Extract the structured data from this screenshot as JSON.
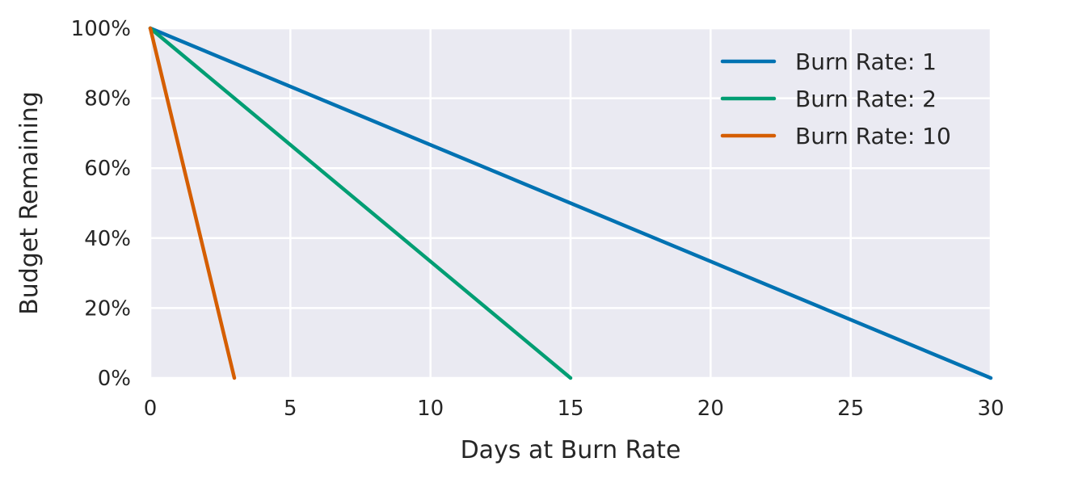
{
  "chart_data": {
    "type": "line",
    "title": "",
    "xlabel": "Days at Burn Rate",
    "ylabel": "Budget Remaining",
    "xlim": [
      0,
      30
    ],
    "ylim": [
      0,
      100
    ],
    "x_ticks": [
      0,
      5,
      10,
      15,
      20,
      25,
      30
    ],
    "x_tick_labels": [
      "0",
      "5",
      "10",
      "15",
      "20",
      "25",
      "30"
    ],
    "y_ticks": [
      0,
      20,
      40,
      60,
      80,
      100
    ],
    "y_tick_labels": [
      "0%",
      "20%",
      "40%",
      "60%",
      "80%",
      "100%"
    ],
    "grid": true,
    "legend_position": "top-right",
    "series": [
      {
        "name": "Burn Rate: 1",
        "color": "#0072b2",
        "x": [
          0,
          30
        ],
        "y": [
          100,
          0
        ]
      },
      {
        "name": "Burn Rate: 2",
        "color": "#009e73",
        "x": [
          0,
          15
        ],
        "y": [
          100,
          0
        ]
      },
      {
        "name": "Burn Rate: 10",
        "color": "#d55e00",
        "x": [
          0,
          3
        ],
        "y": [
          100,
          0
        ]
      }
    ],
    "plot_background": "#eaeaf2",
    "grid_color": "#ffffff"
  }
}
